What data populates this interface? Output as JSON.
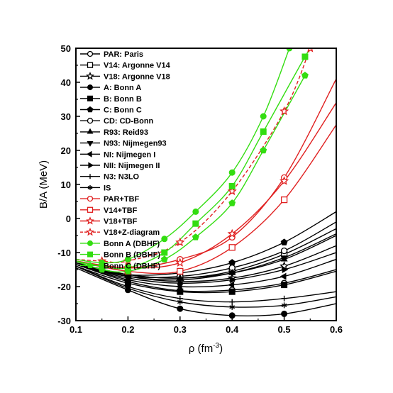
{
  "chart_data": {
    "type": "line",
    "title": "",
    "xlabel": "ρ (fm",
    "xlabel_sup": "-3",
    "xlabel_end": ")",
    "ylabel": "B/A (MeV)",
    "xlim": [
      0.1,
      0.6
    ],
    "ylim": [
      -30,
      50
    ],
    "xticks": [
      "0.1",
      "0.2",
      "0.3",
      "0.4",
      "0.5",
      "0.6"
    ],
    "yticks": [
      "-30",
      "-20",
      "-10",
      "0",
      "10",
      "20",
      "30",
      "40",
      "50"
    ],
    "legend_position": "top-left",
    "grid": false,
    "series": [
      {
        "name": "PAR: Paris",
        "color": "#000000",
        "marker": "circle-open",
        "dash": false,
        "x": [
          0.1,
          0.2,
          0.3,
          0.4,
          0.5,
          0.6
        ],
        "y": [
          -13.5,
          -18.5,
          -21.2,
          -21.0,
          -19.0,
          -15.0
        ]
      },
      {
        "name": "V14: Argonne V14",
        "color": "#000000",
        "marker": "square-open",
        "dash": false,
        "x": [
          0.1,
          0.2,
          0.3,
          0.4,
          0.5,
          0.6
        ],
        "y": [
          -13.0,
          -16.5,
          -17.5,
          -15.5,
          -10.5,
          -3.0
        ]
      },
      {
        "name": "V18: Argonne V18",
        "color": "#000000",
        "marker": "star-open",
        "dash": false,
        "x": [
          0.1,
          0.2,
          0.3,
          0.4,
          0.5,
          0.6
        ],
        "y": [
          -13.0,
          -17.0,
          -18.5,
          -17.5,
          -14.0,
          -8.0
        ]
      },
      {
        "name": "A: Bonn A",
        "color": "#000000",
        "marker": "circle",
        "dash": false,
        "x": [
          0.1,
          0.2,
          0.3,
          0.4,
          0.5,
          0.6
        ],
        "y": [
          -14.5,
          -21.0,
          -26.5,
          -28.5,
          -28.0,
          -25.0
        ]
      },
      {
        "name": "B: Bonn B",
        "color": "#000000",
        "marker": "square",
        "dash": false,
        "x": [
          0.1,
          0.2,
          0.3,
          0.4,
          0.5,
          0.6
        ],
        "y": [
          -14.0,
          -19.0,
          -21.5,
          -21.5,
          -19.5,
          -15.5
        ]
      },
      {
        "name": "C: Bonn C",
        "color": "#000000",
        "marker": "pentagon",
        "dash": false,
        "x": [
          0.1,
          0.2,
          0.3,
          0.4,
          0.5,
          0.6
        ],
        "y": [
          -13.5,
          -16.5,
          -16.0,
          -13.0,
          -7.0,
          2.0
        ]
      },
      {
        "name": "CD: CD-Bonn",
        "color": "#000000",
        "marker": "circle-open",
        "dash": false,
        "x": [
          0.1,
          0.2,
          0.3,
          0.4,
          0.5,
          0.6
        ],
        "y": [
          -13.5,
          -17.0,
          -17.0,
          -14.5,
          -9.5,
          -1.0
        ]
      },
      {
        "name": "R93: Reid93",
        "color": "#000000",
        "marker": "triangle-up",
        "dash": false,
        "x": [
          0.1,
          0.2,
          0.3,
          0.4,
          0.5,
          0.6
        ],
        "y": [
          -13.0,
          -16.5,
          -17.5,
          -16.0,
          -12.0,
          -5.0
        ]
      },
      {
        "name": "N93: Nijmegen93",
        "color": "#000000",
        "marker": "triangle-down",
        "dash": false,
        "x": [
          0.1,
          0.2,
          0.3,
          0.4,
          0.5,
          0.6
        ],
        "y": [
          -13.0,
          -17.0,
          -18.0,
          -16.0,
          -11.5,
          -4.5
        ]
      },
      {
        "name": "NI: Nijmegen I",
        "color": "#000000",
        "marker": "triangle-left",
        "dash": false,
        "x": [
          0.1,
          0.2,
          0.3,
          0.4,
          0.5,
          0.6
        ],
        "y": [
          -13.5,
          -18.0,
          -20.0,
          -19.5,
          -17.0,
          -12.0
        ]
      },
      {
        "name": "NII: Nijmegen II",
        "color": "#000000",
        "marker": "triangle-right",
        "dash": false,
        "x": [
          0.1,
          0.2,
          0.3,
          0.4,
          0.5,
          0.6
        ],
        "y": [
          -13.5,
          -17.5,
          -19.0,
          -18.0,
          -15.0,
          -10.0
        ]
      },
      {
        "name": "N3: N3LO",
        "color": "#000000",
        "marker": "plus",
        "dash": false,
        "x": [
          0.1,
          0.2,
          0.3,
          0.4,
          0.5,
          0.6
        ],
        "y": [
          -14.0,
          -20.0,
          -23.5,
          -24.5,
          -23.5,
          -21.5
        ]
      },
      {
        "name": "IS",
        "color": "#000000",
        "marker": "asterisk",
        "dash": false,
        "x": [
          0.1,
          0.2,
          0.3,
          0.4,
          0.5,
          0.6
        ],
        "y": [
          -14.0,
          -20.5,
          -24.5,
          -26.0,
          -25.5,
          -23.0
        ]
      },
      {
        "name": "PAR+TBF",
        "color": "#e02020",
        "marker": "circle-open",
        "dash": false,
        "x": [
          0.1,
          0.2,
          0.3,
          0.4,
          0.5,
          0.6
        ],
        "y": [
          -12.5,
          -14.5,
          -12.0,
          -5.5,
          12.0,
          41.0
        ]
      },
      {
        "name": "V14+TBF",
        "color": "#e02020",
        "marker": "square-open",
        "dash": false,
        "x": [
          0.1,
          0.2,
          0.3,
          0.4,
          0.5,
          0.6
        ],
        "y": [
          -12.5,
          -15.5,
          -15.5,
          -8.5,
          5.5,
          27.5
        ]
      },
      {
        "name": "V18+TBF",
        "color": "#e02020",
        "marker": "star-open",
        "dash": false,
        "x": [
          0.1,
          0.2,
          0.3,
          0.4,
          0.5,
          0.6
        ],
        "y": [
          -12.5,
          -14.5,
          -13.0,
          -4.5,
          11.0,
          34.0
        ]
      },
      {
        "name": "V18+Z-diagram",
        "color": "#e02020",
        "marker": "star-open",
        "dash": true,
        "x": [
          0.1,
          0.15,
          0.2,
          0.3,
          0.4,
          0.5,
          0.55
        ],
        "y": [
          -12.0,
          -12.5,
          -12.5,
          -7.0,
          8.0,
          31.5,
          50.0
        ]
      },
      {
        "name": "Bonn A (DBHF)",
        "color": "#33dd11",
        "marker": "circle",
        "dash": false,
        "x": [
          0.1,
          0.15,
          0.2,
          0.27,
          0.33,
          0.4,
          0.46,
          0.51
        ],
        "y": [
          -12.0,
          -13.0,
          -12.0,
          -6.0,
          2.0,
          13.5,
          30.0,
          50.0
        ]
      },
      {
        "name": "Bonn B (DBHF)",
        "color": "#33dd11",
        "marker": "square",
        "dash": false,
        "x": [
          0.1,
          0.15,
          0.2,
          0.27,
          0.33,
          0.4,
          0.46,
          0.54,
          0.56
        ],
        "y": [
          -12.5,
          -14.0,
          -14.5,
          -10.0,
          -1.5,
          9.5,
          25.5,
          47.5,
          52.0
        ]
      },
      {
        "name": "Bonn C (DBHF)",
        "color": "#33dd11",
        "marker": "pentagon",
        "dash": false,
        "x": [
          0.1,
          0.15,
          0.2,
          0.27,
          0.33,
          0.4,
          0.46,
          0.54
        ],
        "y": [
          -12.5,
          -15.0,
          -15.5,
          -12.0,
          -5.5,
          4.5,
          20.0,
          42.0
        ]
      }
    ]
  }
}
